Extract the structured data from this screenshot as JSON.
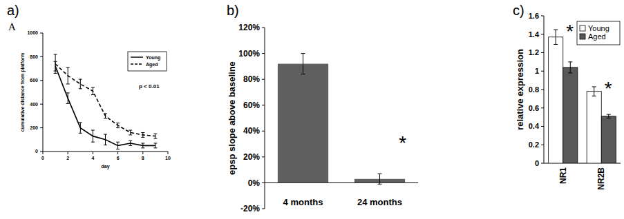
{
  "chart_data": [
    {
      "type": "line",
      "panel": "a)",
      "label": "A",
      "x_label": "day",
      "y_label": "cumulative distance from platform",
      "x": [
        1,
        2,
        3,
        4,
        5,
        6,
        7,
        8,
        9
      ],
      "series": [
        {
          "name": "Young",
          "color": "#000000",
          "line_style": "solid",
          "values": [
            720,
            450,
            200,
            130,
            100,
            50,
            70,
            50,
            50
          ],
          "errors": [
            40,
            45,
            45,
            50,
            45,
            30,
            20,
            20,
            20
          ]
        },
        {
          "name": "Aged",
          "color": "#000000",
          "line_style": "dashed",
          "values": [
            740,
            640,
            570,
            510,
            300,
            220,
            160,
            140,
            130
          ],
          "errors": [
            80,
            70,
            40,
            30,
            20,
            20,
            20,
            20,
            20
          ]
        }
      ],
      "xlim": [
        0,
        10
      ],
      "xticks": [
        0,
        2,
        4,
        6,
        8,
        10
      ],
      "ylim": [
        0,
        1000
      ],
      "yticks": [
        0,
        200,
        400,
        600,
        800,
        1000
      ],
      "legend": "upper right",
      "grid": false,
      "annotations": [
        {
          "text": "p < 0.01"
        }
      ]
    },
    {
      "type": "bar",
      "panel": "b)",
      "y_label": "epsp slope above baseline",
      "categories": [
        "4 months",
        "24 months"
      ],
      "values": [
        92,
        3
      ],
      "errors": [
        8,
        4
      ],
      "color": "#5f5f5f",
      "ylim": [
        -20,
        120
      ],
      "yticks": [
        {
          "value": -20,
          "label": "-20%"
        },
        {
          "value": 0,
          "label": "0%"
        },
        {
          "value": 20,
          "label": "20%"
        },
        {
          "value": 40,
          "label": "40%"
        },
        {
          "value": 60,
          "label": "60%"
        },
        {
          "value": 80,
          "label": "80%"
        },
        {
          "value": 100,
          "label": "100%"
        },
        {
          "value": 120,
          "label": "120%"
        }
      ],
      "grid": false,
      "annotations": [
        {
          "text": "*",
          "category": "24 months"
        }
      ]
    },
    {
      "type": "bar",
      "panel": "c)",
      "y_label": "relative expression",
      "categories": [
        "NR1",
        "NR2B"
      ],
      "series": [
        {
          "name": "Young",
          "color": "#ffffff",
          "values": [
            1.37,
            0.78
          ],
          "errors": [
            0.08,
            0.05
          ]
        },
        {
          "name": "Aged",
          "color": "#595959",
          "values": [
            1.04,
            0.51
          ],
          "errors": [
            0.06,
            0.02
          ]
        }
      ],
      "ylim": [
        0,
        1.6
      ],
      "yticks": [
        0,
        0.2,
        0.4,
        0.6,
        0.8,
        1,
        1.2,
        1.4,
        1.6
      ],
      "legend": "upper right",
      "grid": false,
      "annotations": [
        {
          "text": "*",
          "category": "NR1"
        },
        {
          "text": "*",
          "category": "NR2B"
        }
      ]
    }
  ]
}
